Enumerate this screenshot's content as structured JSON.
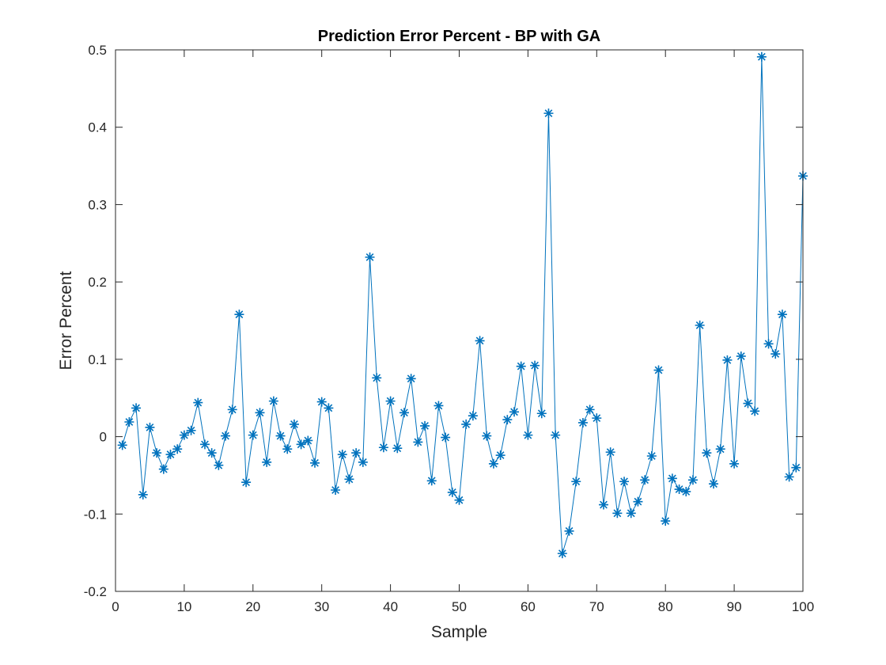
{
  "chart_data": {
    "type": "line",
    "title": "Prediction Error Percent  - BP with GA",
    "xlabel": "Sample",
    "ylabel": "Error Percent",
    "xlim": [
      0,
      100
    ],
    "ylim": [
      -0.2,
      0.5
    ],
    "xticks": [
      0,
      10,
      20,
      30,
      40,
      50,
      60,
      70,
      80,
      90,
      100
    ],
    "yticks": [
      -0.2,
      -0.1,
      0,
      0.1,
      0.2,
      0.3,
      0.4,
      0.5
    ],
    "xtick_labels": [
      "0",
      "10",
      "20",
      "30",
      "40",
      "50",
      "60",
      "70",
      "80",
      "90",
      "100"
    ],
    "ytick_labels": [
      "-0.2",
      "-0.1",
      "0",
      "0.1",
      "0.2",
      "0.3",
      "0.4",
      "0.5"
    ],
    "grid": false,
    "marker": "asterisk",
    "series": [
      {
        "color": "#0072BD",
        "x": [
          1,
          2,
          3,
          4,
          5,
          6,
          7,
          8,
          9,
          10,
          11,
          12,
          13,
          14,
          15,
          16,
          17,
          18,
          19,
          20,
          21,
          22,
          23,
          24,
          25,
          26,
          27,
          28,
          29,
          30,
          31,
          32,
          33,
          34,
          35,
          36,
          37,
          38,
          39,
          40,
          41,
          42,
          43,
          44,
          45,
          46,
          47,
          48,
          49,
          50,
          51,
          52,
          53,
          54,
          55,
          56,
          57,
          58,
          59,
          60,
          61,
          62,
          63,
          64,
          65,
          66,
          67,
          68,
          69,
          70,
          71,
          72,
          73,
          74,
          75,
          76,
          77,
          78,
          79,
          80,
          81,
          82,
          83,
          84,
          85,
          86,
          87,
          88,
          89,
          90,
          91,
          92,
          93,
          94,
          95,
          96,
          97,
          98,
          99,
          100
        ],
        "y": [
          -0.011,
          0.019,
          0.037,
          -0.075,
          0.012,
          -0.021,
          -0.042,
          -0.023,
          -0.016,
          0.002,
          0.008,
          0.044,
          -0.01,
          -0.021,
          -0.037,
          0.001,
          0.035,
          0.158,
          -0.059,
          0.002,
          0.031,
          -0.033,
          0.046,
          0.001,
          -0.016,
          0.016,
          -0.01,
          -0.005,
          -0.034,
          0.045,
          0.037,
          -0.069,
          -0.023,
          -0.055,
          -0.021,
          -0.033,
          0.232,
          0.076,
          -0.014,
          0.046,
          -0.015,
          0.031,
          0.075,
          -0.007,
          0.014,
          -0.057,
          0.04,
          -0.001,
          -0.072,
          -0.082,
          0.016,
          0.027,
          0.124,
          0.001,
          -0.035,
          -0.024,
          0.022,
          0.032,
          0.091,
          0.002,
          0.092,
          0.03,
          0.418,
          0.002,
          -0.151,
          -0.122,
          -0.058,
          0.018,
          0.035,
          0.024,
          -0.088,
          -0.02,
          -0.099,
          -0.058,
          -0.099,
          -0.084,
          -0.056,
          -0.025,
          0.086,
          -0.109,
          -0.054,
          -0.068,
          -0.071,
          -0.056,
          0.144,
          -0.021,
          -0.061,
          -0.016,
          0.099,
          -0.035,
          0.104,
          0.043,
          0.033,
          0.491,
          0.12,
          0.107,
          0.158,
          -0.052,
          -0.04,
          0.337
        ]
      }
    ]
  }
}
